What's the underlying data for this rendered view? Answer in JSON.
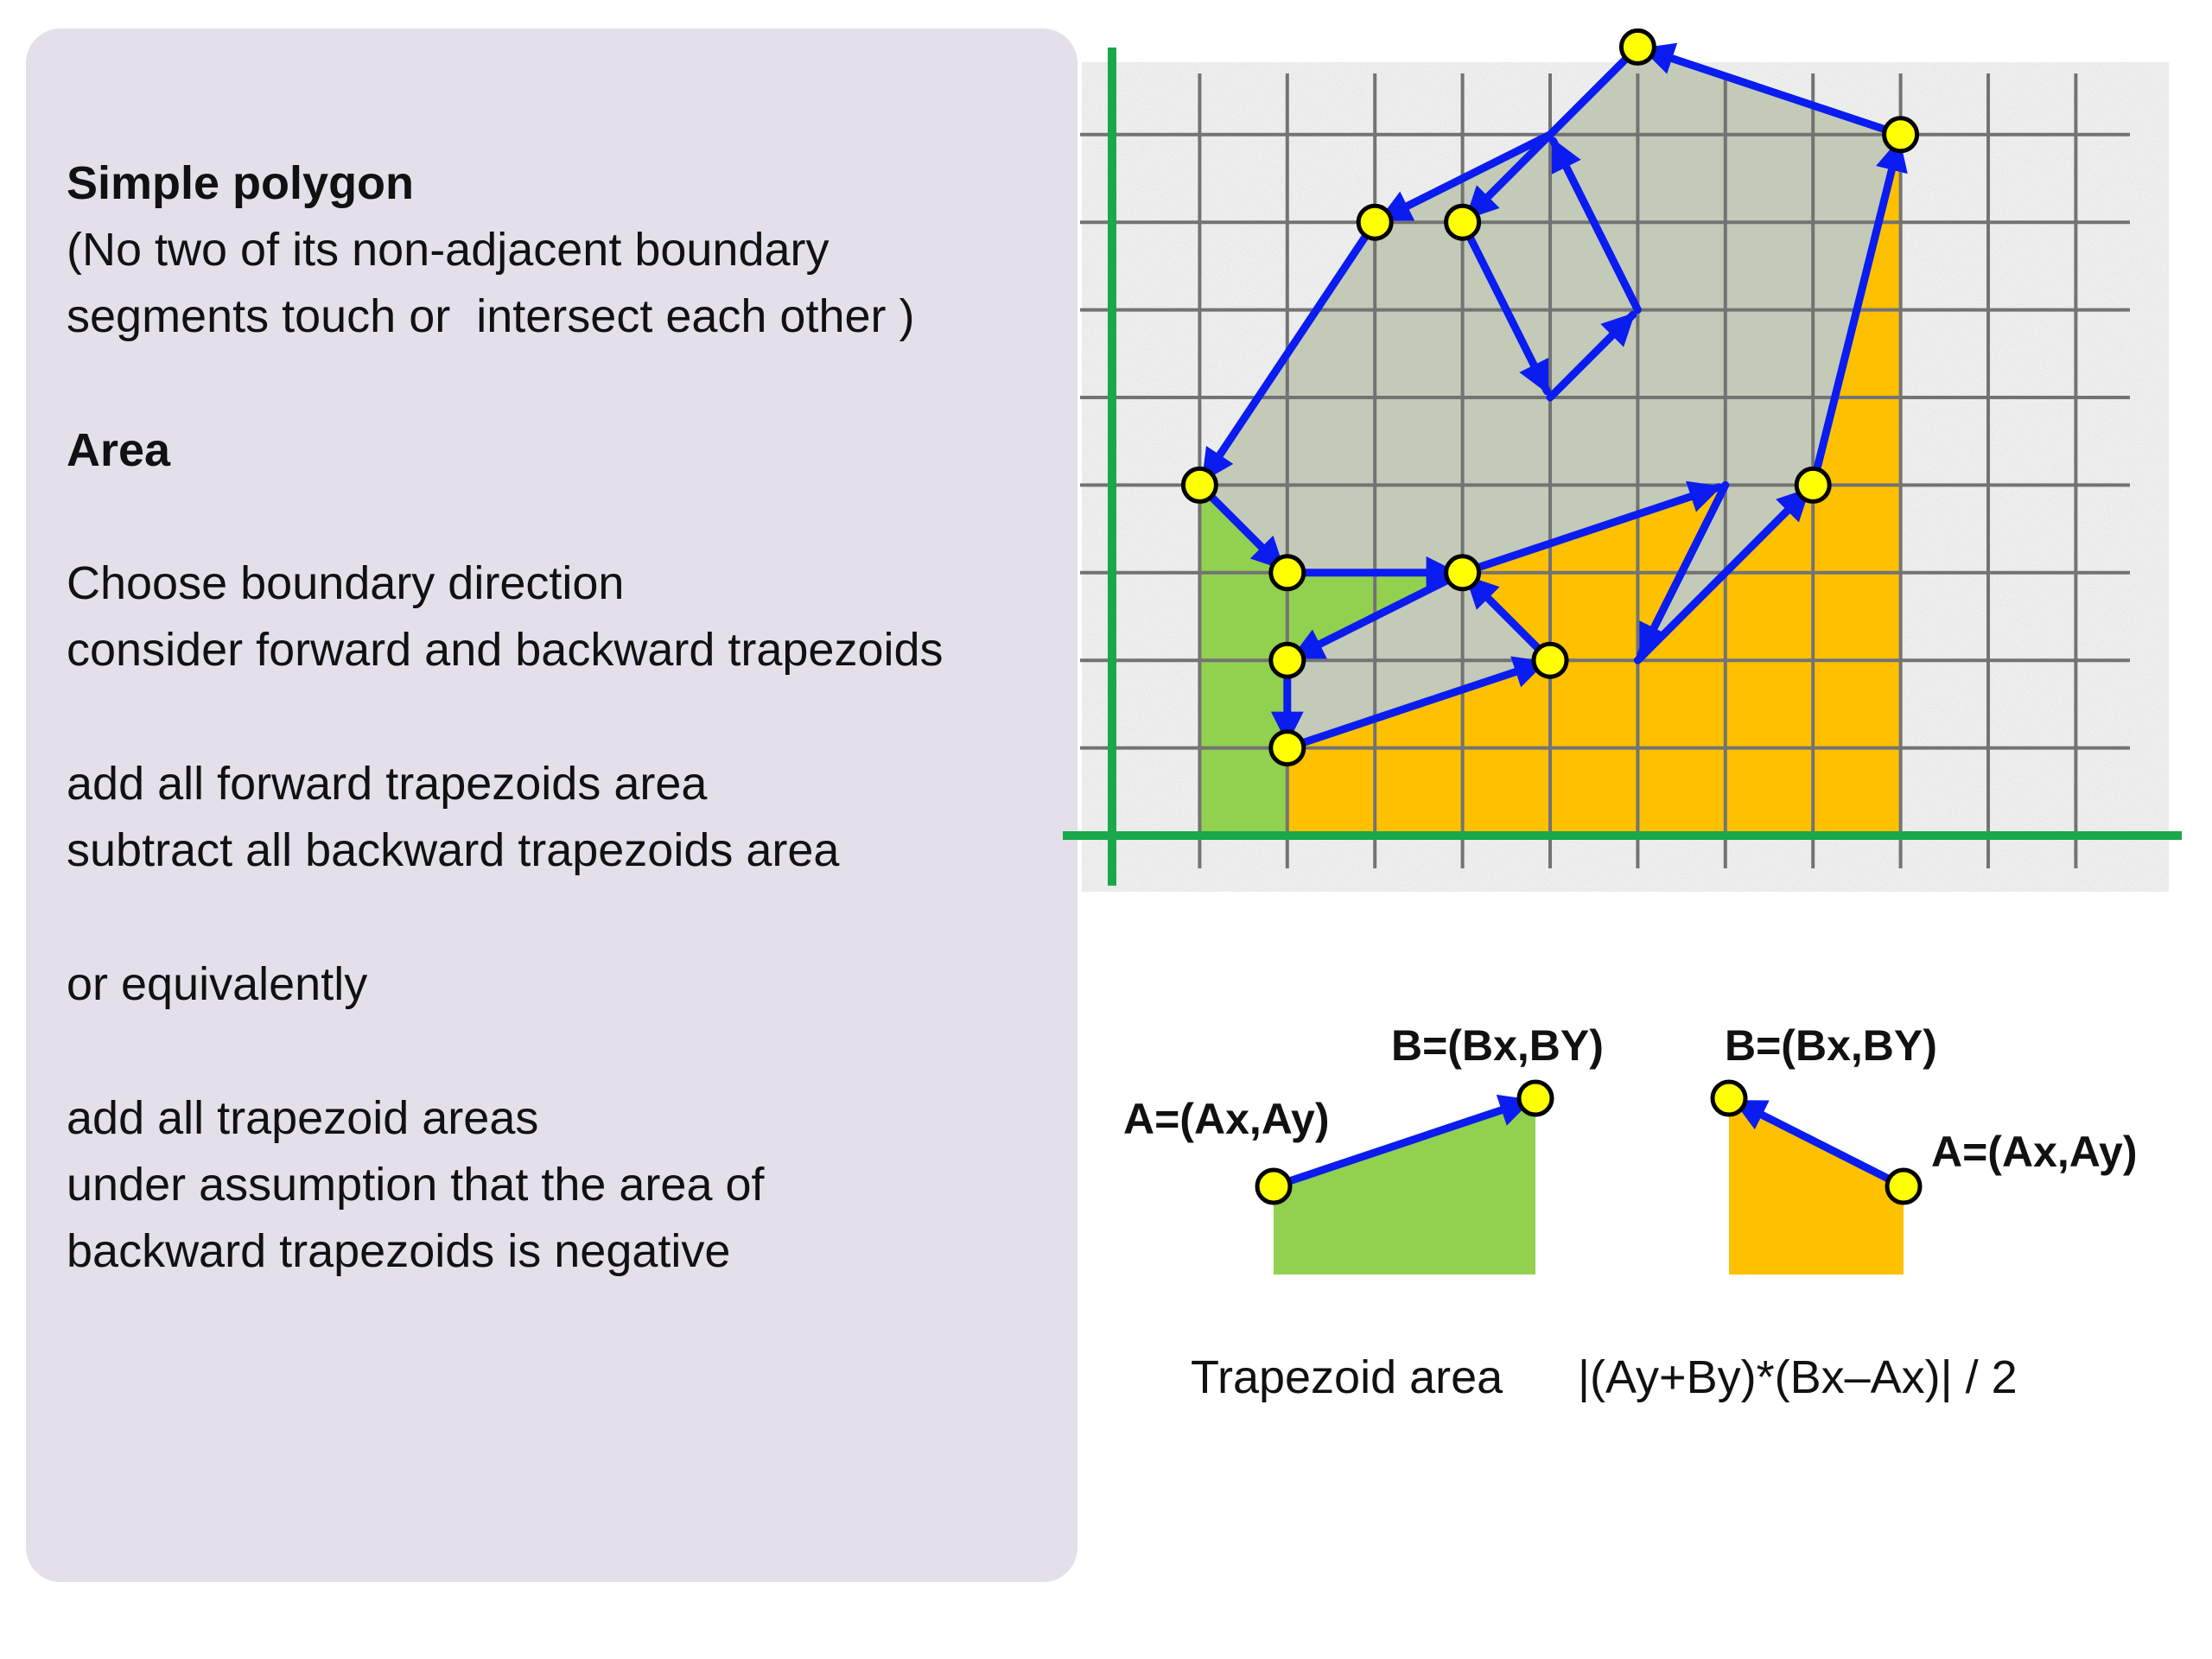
{
  "text_panel": {
    "heading_simple": "Simple polygon",
    "definition_line1": "(No two of its non-adjacent boundary",
    "definition_line2": "segments touch or  intersect each other )",
    "heading_area": "Area",
    "step1_line1": "Choose boundary direction",
    "step1_line2": "consider forward and backward trapezoids",
    "step2_line1": "add all forward trapezoids area",
    "step2_line2": "subtract all backward trapezoids area",
    "or_text": "or equivalently",
    "step3_line1": "add all trapezoid areas",
    "step3_line2": "under assumption that the area of",
    "step3_line3": "backward trapezoids is negative"
  },
  "diagram": {
    "colors": {
      "forward": "#92d050",
      "backward": "#ffc000",
      "polygon_fill": "#b4cce6",
      "edge": "#0a1cf0",
      "axis": "#1aa84a",
      "grid": "#737373",
      "vertex_marker": "#ffff00"
    },
    "polygon_vertices_grid": [
      [
        2,
        1
      ],
      [
        5,
        2
      ],
      [
        4,
        3
      ],
      [
        7,
        4
      ],
      [
        6,
        2
      ],
      [
        8,
        4
      ],
      [
        9,
        8
      ],
      [
        6,
        9
      ],
      [
        4,
        7
      ],
      [
        5,
        5
      ],
      [
        6,
        6
      ],
      [
        5,
        8
      ],
      [
        3,
        7
      ],
      [
        1,
        4
      ],
      [
        2,
        3
      ],
      [
        4,
        3
      ],
      [
        2,
        2
      ],
      [
        2,
        1
      ]
    ],
    "marked_vertices_grid": [
      [
        2,
        1
      ],
      [
        5,
        2
      ],
      [
        8,
        4
      ],
      [
        9,
        8
      ],
      [
        6,
        9
      ],
      [
        4,
        7
      ],
      [
        3,
        7
      ],
      [
        1,
        4
      ],
      [
        2,
        3
      ],
      [
        4,
        3
      ],
      [
        2,
        2
      ]
    ]
  },
  "examples": {
    "forward": {
      "label_a": "A=(Ax,Ay)",
      "label_b": "B=(Bx,BY)"
    },
    "backward": {
      "label_a": "A=(Ax,Ay)",
      "label_b": "B=(Bx,BY)"
    }
  },
  "formula": {
    "label": "Trapezoid area",
    "expression": "|(Ay+By)*(Bx–Ax)| / 2"
  }
}
